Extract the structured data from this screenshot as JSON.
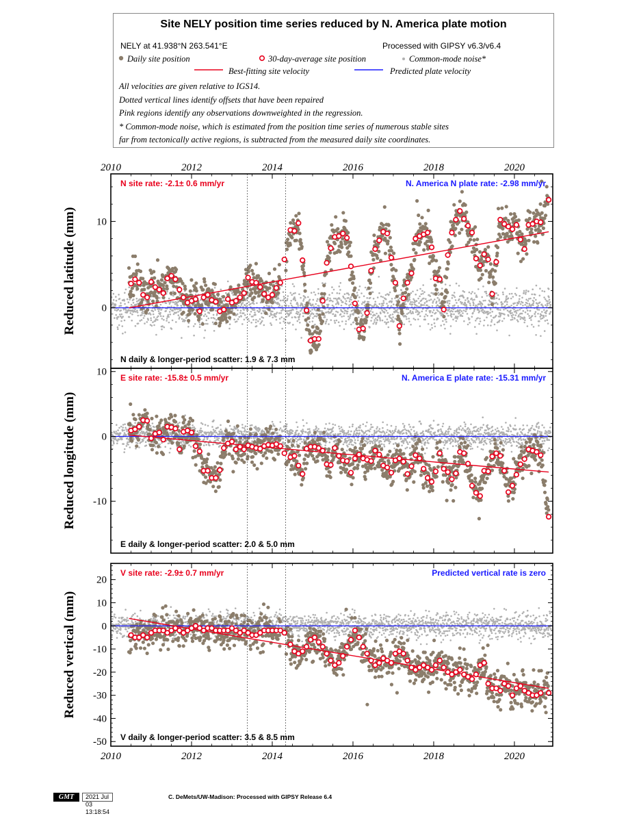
{
  "legend": {
    "title": "Site NELY position time series reduced by N. America plate motion",
    "site_location": "NELY at 41.938°N 263.541°E",
    "processing": "Processed with GIPSY v6.3/v6.4",
    "item_daily": "Daily site position",
    "item_avg": "30-day-average site position",
    "item_cm": "Common-mode noise*",
    "item_best": "Best-fitting site velocity",
    "item_plate": "Predicted plate velocity",
    "note1": "All velocities are given relative to IGS14.",
    "note2": "Dotted vertical lines identify offsets that have been repaired",
    "note3": "Pink regions identify any observations downweighted in the regression.",
    "note4": "* Common-mode noise, which is estimated from the position time series of numerous stable sites",
    "note5": "far from tectonically active regions, is subtracted from the measured daily site coordinates.",
    "colors": {
      "daily": "#8b7d6b",
      "avg_edge": "#e8001c",
      "common_mode": "#b0b0b0",
      "best_fit": "#e8001c",
      "plate": "#1a1aff"
    }
  },
  "chart_data": [
    {
      "type": "scatter",
      "panel": "north",
      "ylabel": "Reduced latitude (mm)",
      "xlim": [
        2010,
        2020.95
      ],
      "ylim": [
        -7,
        15.5
      ],
      "x_ticks": [
        2010,
        2012,
        2014,
        2016,
        2018,
        2020
      ],
      "x_tick_labels": [
        "2010",
        "2012",
        "2014",
        "2016",
        "2018",
        "2020"
      ],
      "y_ticks": [
        -10,
        0,
        10
      ],
      "y_tick_labels": [
        "",
        "0",
        "10"
      ],
      "offsets": [
        2013.38,
        2014.33
      ],
      "site_rate_text": "N site rate:  -2.1± 0.6 mm/yr",
      "plate_rate_text": "N. America N plate rate: -2.98 mm/yr",
      "scatter_text": "N daily & longer-period scatter:   1.9 &   7.3 mm",
      "best_fit": {
        "x": [
          2010.45,
          2020.85
        ],
        "y": [
          0.0,
          8.8
        ]
      },
      "plate_line": 0,
      "averages": {
        "x": [
          2010.5,
          2010.6,
          2010.7,
          2010.8,
          2010.9,
          2011.0,
          2011.1,
          2011.2,
          2011.3,
          2011.4,
          2011.5,
          2011.6,
          2011.7,
          2011.8,
          2011.9,
          2012.0,
          2012.1,
          2012.2,
          2012.3,
          2012.4,
          2012.5,
          2012.6,
          2012.7,
          2012.8,
          2012.9,
          2013.0,
          2013.1,
          2013.2,
          2013.3,
          2013.4,
          2013.5,
          2013.6,
          2013.7,
          2013.8,
          2013.9,
          2014.0,
          2014.1,
          2014.2,
          2014.3,
          2014.45,
          2014.55,
          2014.65,
          2014.75,
          2014.85,
          2014.95,
          2015.05,
          2015.15,
          2015.25,
          2015.35,
          2015.45,
          2015.55,
          2015.65,
          2015.75,
          2015.85,
          2015.95,
          2016.05,
          2016.15,
          2016.25,
          2016.35,
          2016.45,
          2016.55,
          2016.65,
          2016.75,
          2016.85,
          2016.95,
          2017.05,
          2017.15,
          2017.25,
          2017.35,
          2017.45,
          2017.55,
          2017.65,
          2017.75,
          2017.85,
          2017.95,
          2018.05,
          2018.15,
          2018.25,
          2018.35,
          2018.45,
          2018.55,
          2018.65,
          2018.75,
          2018.85,
          2018.95,
          2019.05,
          2019.15,
          2019.25,
          2019.35,
          2019.45,
          2019.55,
          2019.65,
          2019.75,
          2019.85,
          2019.95,
          2020.05,
          2020.15,
          2020.25,
          2020.35,
          2020.45,
          2020.55,
          2020.65,
          2020.85
        ],
        "y": [
          2.8,
          3.3,
          2.9,
          1.5,
          1.2,
          3.0,
          2.4,
          2.1,
          1.7,
          3.4,
          3.7,
          3.3,
          2.1,
          1.2,
          0.6,
          0.8,
          1.0,
          -0.4,
          1.2,
          1.5,
          0.9,
          0.7,
          -0.4,
          -0.2,
          1.0,
          0.6,
          0.8,
          1.2,
          1.7,
          3.5,
          3.0,
          2.9,
          2.4,
          1.6,
          1.2,
          1.5,
          2.3,
          2.9,
          5.6,
          9.0,
          8.9,
          9.8,
          5.5,
          -0.3,
          -3.8,
          -3.6,
          -3.6,
          0.8,
          5.2,
          6.9,
          8.2,
          8.3,
          8.6,
          8.1,
          4.8,
          0.5,
          -2.5,
          -2.4,
          -0.6,
          4.3,
          6.8,
          7.8,
          8.8,
          8.6,
          5.8,
          2.9,
          -2.1,
          1.1,
          2.9,
          4.0,
          8.0,
          8.3,
          8.5,
          8.7,
          7.0,
          3.4,
          3.3,
          -0.2,
          6.1,
          8.7,
          10.2,
          11.2,
          10.3,
          9.5,
          8.7,
          5.7,
          4.9,
          6.2,
          5.6,
          1.6,
          5.3,
          10.2,
          9.7,
          9.4,
          9.1,
          9.6,
          7.9,
          6.8,
          9.6,
          9.7,
          10.0,
          9.9,
          12.5
        ]
      },
      "common_mode": {
        "amplitude": 1.5
      }
    },
    {
      "type": "scatter",
      "panel": "east",
      "ylabel": "Reduced longitude (mm)",
      "xlim": [
        2010,
        2020.95
      ],
      "ylim": [
        -18,
        10.5
      ],
      "x_ticks": [
        2010,
        2012,
        2014,
        2016,
        2018,
        2020
      ],
      "x_tick_labels": [
        "",
        "",
        "",
        "",
        "",
        ""
      ],
      "y_ticks": [
        -10,
        0,
        10
      ],
      "y_tick_labels": [
        "-10",
        "0",
        "10"
      ],
      "offsets": [
        2013.38,
        2014.33
      ],
      "site_rate_text": "E site rate:  -15.8± 0.5 mm/yr",
      "plate_rate_text": "N. America E plate rate: -15.31 mm/yr",
      "scatter_text": "E daily & longer-period scatter:   2.0 &   5.0 mm",
      "best_fit": {
        "x": [
          2010.45,
          2020.85
        ],
        "y": [
          0.2,
          -5.5
        ]
      },
      "plate_line": 0,
      "averages": {
        "x": [
          2010.5,
          2010.6,
          2010.7,
          2010.8,
          2010.9,
          2011.0,
          2011.1,
          2011.2,
          2011.3,
          2011.4,
          2011.5,
          2011.6,
          2011.7,
          2011.8,
          2011.9,
          2012.0,
          2012.1,
          2012.2,
          2012.3,
          2012.4,
          2012.5,
          2012.6,
          2012.7,
          2012.8,
          2012.9,
          2013.0,
          2013.1,
          2013.2,
          2013.3,
          2013.4,
          2013.5,
          2013.6,
          2013.7,
          2013.8,
          2013.9,
          2014.0,
          2014.1,
          2014.2,
          2014.3,
          2014.45,
          2014.55,
          2014.65,
          2014.75,
          2014.85,
          2014.95,
          2015.05,
          2015.15,
          2015.25,
          2015.35,
          2015.45,
          2015.55,
          2015.65,
          2015.75,
          2015.85,
          2015.95,
          2016.05,
          2016.15,
          2016.25,
          2016.35,
          2016.45,
          2016.55,
          2016.65,
          2016.75,
          2016.85,
          2016.95,
          2017.05,
          2017.15,
          2017.25,
          2017.35,
          2017.45,
          2017.55,
          2017.65,
          2017.75,
          2017.85,
          2017.95,
          2018.05,
          2018.15,
          2018.25,
          2018.35,
          2018.45,
          2018.55,
          2018.65,
          2018.75,
          2018.85,
          2018.95,
          2019.05,
          2019.15,
          2019.25,
          2019.35,
          2019.45,
          2019.55,
          2019.65,
          2019.75,
          2019.85,
          2019.95,
          2020.05,
          2020.15,
          2020.25,
          2020.35,
          2020.45,
          2020.55,
          2020.65,
          2020.85
        ],
        "y": [
          0.9,
          1.1,
          1.5,
          2.5,
          2.4,
          -0.3,
          0.4,
          0.6,
          -0.5,
          1.5,
          1.4,
          1.2,
          -2.0,
          0.7,
          0.9,
          0.6,
          -1.5,
          -2.3,
          -5.3,
          -5.3,
          -6.4,
          -6.4,
          -5.2,
          -1.8,
          -1.1,
          -0.8,
          -2.0,
          -1.6,
          -2.0,
          -1.4,
          -1.6,
          -1.8,
          -1.9,
          -1.5,
          -1.3,
          -1.4,
          -1.2,
          -1.5,
          -2.6,
          -3.2,
          -3.0,
          -4.5,
          -5.8,
          -1.9,
          -1.6,
          -1.6,
          -1.8,
          -2.2,
          -4.3,
          -4.4,
          -1.8,
          -3.0,
          -3.7,
          -3.8,
          -5.6,
          -3.4,
          -2.8,
          -3.4,
          -3.6,
          -3.8,
          -2.2,
          -2.8,
          -4.5,
          -4.8,
          -5.6,
          -3.7,
          -3.4,
          -3.9,
          -5.8,
          -4.6,
          -2.9,
          -3.4,
          -5.0,
          -6.4,
          -7.0,
          -5.4,
          -2.6,
          -5.0,
          -5.5,
          -6.6,
          -5.7,
          -2.4,
          -2.6,
          -4.2,
          -7.6,
          -8.7,
          -9.2,
          -5.3,
          -5.4,
          -3.1,
          -2.6,
          -3.0,
          -5.3,
          -8.6,
          -7.6,
          -5.9,
          -4.3,
          -3.5,
          -2.0,
          -2.2,
          -2.4,
          -2.9,
          -12.4
        ]
      },
      "common_mode": {
        "amplitude": 1.2
      }
    },
    {
      "type": "scatter",
      "panel": "vertical",
      "ylabel": "Reduced vertical (mm)",
      "xlim": [
        2010,
        2020.95
      ],
      "ylim": [
        -52,
        27
      ],
      "x_ticks": [
        2010,
        2012,
        2014,
        2016,
        2018,
        2020
      ],
      "x_tick_labels": [
        "2010",
        "2012",
        "2014",
        "2016",
        "2018",
        "2020"
      ],
      "y_ticks": [
        -50,
        -40,
        -30,
        -20,
        -10,
        0,
        10,
        20
      ],
      "y_tick_labels": [
        "-50",
        "-40",
        "-30",
        "-20",
        "-10",
        "0",
        "10",
        "20"
      ],
      "offsets": [
        2013.38,
        2014.33
      ],
      "site_rate_text": "V site rate:  -2.9± 0.7 mm/yr",
      "plate_rate_text": "Predicted vertical rate is zero",
      "scatter_text": "V daily & longer-period scatter:   3.5 &   8.5 mm",
      "best_fit": {
        "x": [
          2010.45,
          2020.85
        ],
        "y": [
          3.2,
          -27.0
        ]
      },
      "plate_line": 0,
      "averages": {
        "x": [
          2010.5,
          2010.6,
          2010.7,
          2010.8,
          2010.9,
          2011.0,
          2011.1,
          2011.2,
          2011.3,
          2011.4,
          2011.5,
          2011.6,
          2011.7,
          2011.8,
          2011.9,
          2012.0,
          2012.1,
          2012.2,
          2012.3,
          2012.4,
          2012.5,
          2012.6,
          2012.7,
          2012.8,
          2012.9,
          2013.0,
          2013.1,
          2013.2,
          2013.3,
          2013.4,
          2013.5,
          2013.6,
          2013.7,
          2013.8,
          2013.9,
          2014.0,
          2014.1,
          2014.2,
          2014.3,
          2014.45,
          2014.55,
          2014.65,
          2014.75,
          2014.85,
          2014.95,
          2015.05,
          2015.15,
          2015.25,
          2015.35,
          2015.45,
          2015.55,
          2015.65,
          2015.75,
          2015.85,
          2015.95,
          2016.05,
          2016.15,
          2016.25,
          2016.35,
          2016.45,
          2016.55,
          2016.65,
          2016.75,
          2016.85,
          2016.95,
          2017.05,
          2017.15,
          2017.25,
          2017.35,
          2017.45,
          2017.55,
          2017.65,
          2017.75,
          2017.85,
          2017.95,
          2018.05,
          2018.15,
          2018.25,
          2018.35,
          2018.45,
          2018.55,
          2018.65,
          2018.75,
          2018.85,
          2018.95,
          2019.05,
          2019.15,
          2019.25,
          2019.35,
          2019.45,
          2019.55,
          2019.65,
          2019.75,
          2019.85,
          2019.95,
          2020.05,
          2020.15,
          2020.25,
          2020.35,
          2020.45,
          2020.55,
          2020.65,
          2020.85
        ],
        "y": [
          -4,
          -5,
          -5,
          -4,
          -5,
          -3,
          -2,
          -2,
          -2,
          -3,
          -2,
          -1,
          -2,
          -3,
          -2,
          -1,
          0,
          -1,
          -2,
          -1,
          -1,
          -2,
          -2,
          -2,
          -2,
          -1,
          -2,
          -3,
          -2,
          -3,
          -4,
          -4,
          -3,
          -2,
          -2,
          -2,
          -2,
          -2,
          -3,
          -8,
          -11,
          -12,
          -11,
          -9,
          -6,
          -5,
          -7,
          -9,
          -12,
          -15,
          -17,
          -16,
          -13,
          -9,
          -6,
          -2,
          -5,
          -9,
          -12,
          -15,
          -17,
          -16,
          -14,
          -15,
          -16,
          -12,
          -11,
          -12,
          -15,
          -18,
          -19,
          -18,
          -17,
          -18,
          -19,
          -17,
          -15,
          -18,
          -20,
          -21,
          -20,
          -19,
          -21,
          -22,
          -23,
          -21,
          -17,
          -16,
          -25,
          -27,
          -27,
          -28,
          -25,
          -26,
          -30,
          -27,
          -26,
          -28,
          -29,
          -30,
          -30,
          -29,
          -29
        ]
      },
      "common_mode": {
        "amplitude": 3.5
      }
    }
  ],
  "footer": {
    "logo": "GMT",
    "timestamp": "2021 Jul 03 13:18:54",
    "credit": "C. DeMets/UW-Madison: Processed with GIPSY Release 6.4"
  }
}
